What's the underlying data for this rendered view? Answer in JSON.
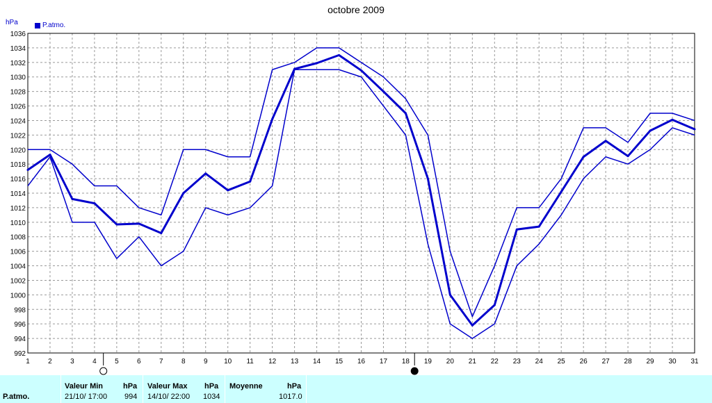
{
  "chart_data": {
    "type": "line",
    "title": "octobre 2009",
    "ylabel": "hPa",
    "xlabel": "",
    "ylim": [
      992,
      1036
    ],
    "xlim": [
      1,
      31
    ],
    "grid": true,
    "legend_placement": "top-left",
    "x": [
      1,
      2,
      3,
      4,
      5,
      6,
      7,
      8,
      9,
      10,
      11,
      12,
      13,
      14,
      15,
      16,
      17,
      18,
      19,
      20,
      21,
      22,
      23,
      24,
      25,
      26,
      27,
      28,
      29,
      30,
      31
    ],
    "x_tick_labels": [
      "1",
      "2",
      "3",
      "4",
      "5",
      "6",
      "7",
      "8",
      "9",
      "10",
      "11",
      "12",
      "13",
      "14",
      "15",
      "16",
      "17",
      "18",
      "19",
      "20",
      "21",
      "22",
      "23",
      "24",
      "25",
      "26",
      "27",
      "28",
      "29",
      "30",
      "31"
    ],
    "y_ticks": [
      992,
      994,
      996,
      998,
      1000,
      1002,
      1004,
      1006,
      1008,
      1010,
      1012,
      1014,
      1016,
      1018,
      1020,
      1022,
      1024,
      1026,
      1028,
      1030,
      1032,
      1034,
      1036
    ],
    "series": [
      {
        "name": "P.atmo.",
        "role": "mean",
        "values": [
          1017.2,
          1019.3,
          1013.2,
          1012.6,
          1009.7,
          1009.8,
          1008.5,
          1014.0,
          1016.7,
          1014.4,
          1015.6,
          1024.2,
          1031.1,
          1031.9,
          1033.0,
          1030.9,
          1028.0,
          1025.0,
          1016.0,
          1000.0,
          995.8,
          998.6,
          1009.0,
          1009.4,
          1014.2,
          1019.0,
          1021.2,
          1019.1,
          1022.6,
          1024.1,
          1022.8
        ]
      },
      {
        "role": "max",
        "values": [
          1020,
          1020,
          1018,
          1015,
          1015,
          1012,
          1011,
          1020,
          1020,
          1019,
          1019,
          1031,
          1032,
          1034,
          1034,
          1032,
          1030,
          1027,
          1022,
          1006,
          997,
          1004,
          1012,
          1012,
          1016,
          1023,
          1023,
          1021,
          1025,
          1025,
          1024
        ]
      },
      {
        "role": "min",
        "values": [
          1015,
          1019,
          1010,
          1010,
          1005,
          1008,
          1004,
          1006,
          1012,
          1011,
          1012,
          1015,
          1031,
          1031,
          1031,
          1030,
          1026,
          1022,
          1007,
          996,
          994,
          996,
          1004,
          1007,
          1011,
          1016,
          1019,
          1018,
          1020,
          1023,
          1022
        ]
      }
    ],
    "moon_phases": [
      {
        "x": 4.4,
        "phase": "full"
      },
      {
        "x": 18.4,
        "phase": "new"
      }
    ]
  },
  "legend": {
    "label": "P.atmo."
  },
  "stats": {
    "row_label": "P.atmo.",
    "min_header": "Valeur Min",
    "min_unit": "hPa",
    "min_date": "21/10/  17:00",
    "min_value": "994",
    "max_header": "Valeur Max",
    "max_unit": "hPa",
    "max_date": "14/10/  22:00",
    "max_value": "1034",
    "avg_header": "Moyenne",
    "avg_unit": "hPa",
    "avg_value": "1017.0"
  },
  "colors": {
    "series": "#0000cc",
    "grid": "#999999",
    "panel": "#ccffff"
  }
}
